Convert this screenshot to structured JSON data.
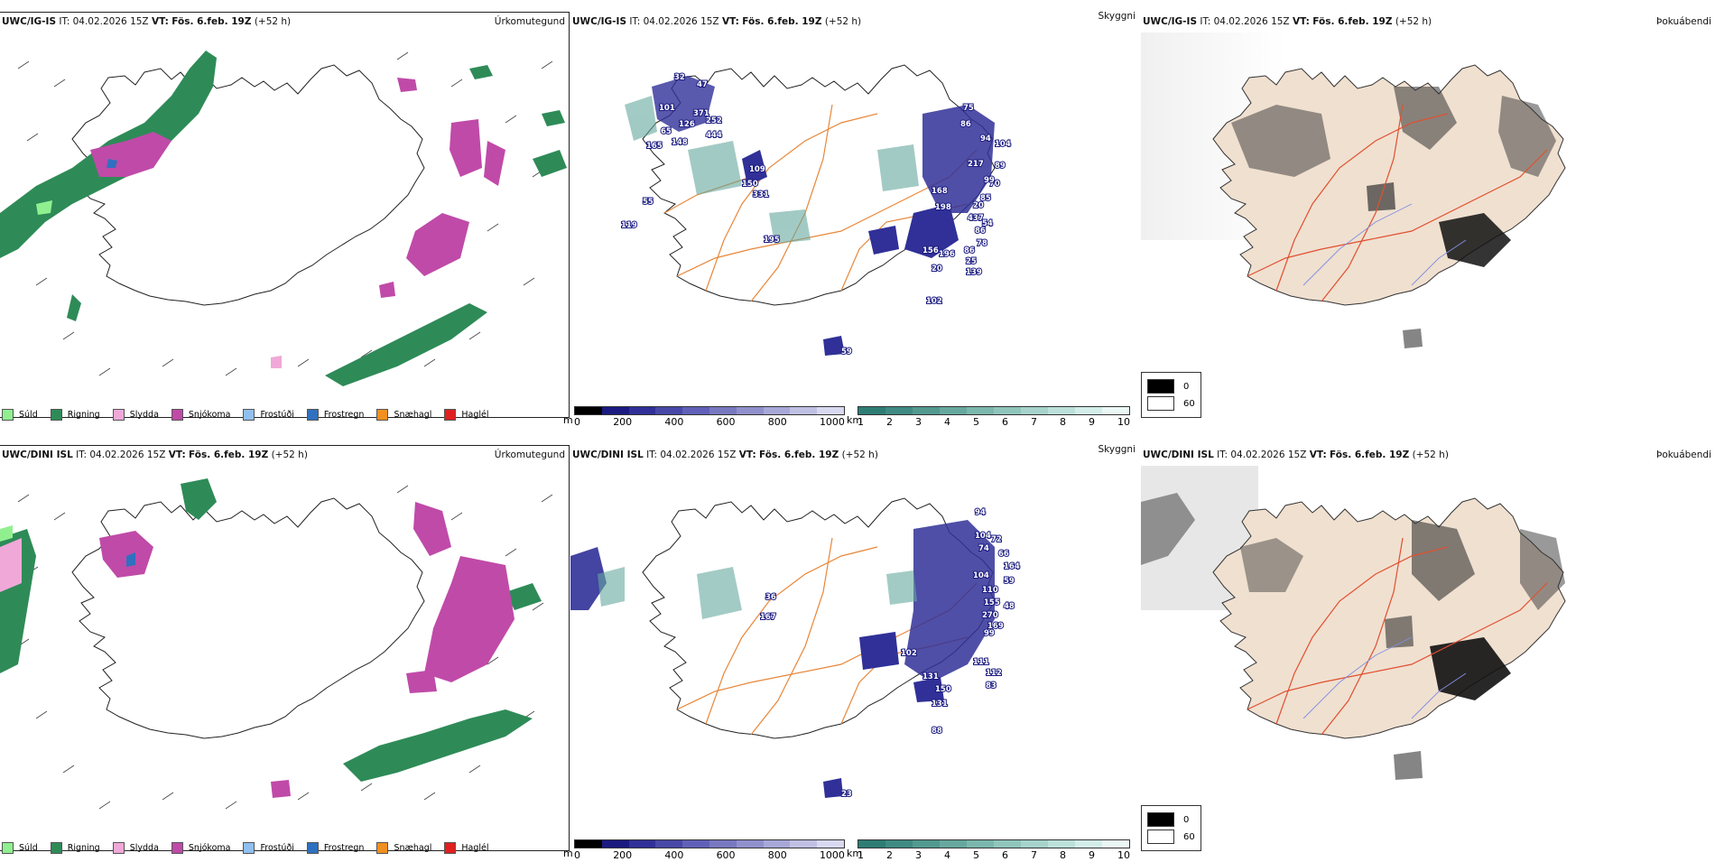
{
  "panels": {
    "ig_precip": {
      "model": "UWC/IG-IS",
      "it_label": "IT:",
      "it_value": "04.02.2026 15Z",
      "vt_label": "VT:",
      "vt_value": "Fös. 6.feb. 19Z",
      "lead": "(+52 h)",
      "title": "Úrkomutegund"
    },
    "ig_cloud": {
      "model": "UWC/IG-IS",
      "it_label": "IT:",
      "it_value": "04.02.2026 15Z",
      "vt_label": "VT:",
      "vt_value": "Fös. 6.feb. 19Z",
      "lead": "(+52 h)",
      "title": "Skyggni"
    },
    "ig_fog": {
      "model": "UWC/IG-IS",
      "it_label": "IT:",
      "it_value": "04.02.2026 15Z",
      "vt_label": "VT:",
      "vt_value": "Fös. 6.feb. 19Z",
      "lead": "(+52 h)",
      "title": "Þokuábendi"
    },
    "dini_precip": {
      "model": "UWC/DINI ISL",
      "it_label": "IT:",
      "it_value": "04.02.2026 15Z",
      "vt_label": "VT:",
      "vt_value": "Fös. 6.feb. 19Z",
      "lead": "(+52 h)",
      "title": "Úrkomutegund"
    },
    "dini_cloud": {
      "model": "UWC/DINI ISL",
      "it_label": "IT:",
      "it_value": "04.02.2026 15Z",
      "vt_label": "VT:",
      "vt_value": "Fös. 6.feb. 19Z",
      "lead": "(+52 h)",
      "title": "Skyggni"
    },
    "dini_fog": {
      "model": "UWC/DINI ISL",
      "it_label": "IT:",
      "it_value": "04.02.2026 15Z",
      "vt_label": "VT:",
      "vt_value": "Fös. 6.feb. 19Z",
      "lead": "(+52 h)",
      "title": "Þokuábendi"
    }
  },
  "precip_legend": [
    {
      "label": "Súld",
      "color": "#90f090"
    },
    {
      "label": "Rigning",
      "color": "#2e8b57"
    },
    {
      "label": "Slydda",
      "color": "#f0a8d8"
    },
    {
      "label": "Snjókoma",
      "color": "#c04aa8"
    },
    {
      "label": "Frostúði",
      "color": "#90c0f0"
    },
    {
      "label": "Frostregn",
      "color": "#3070c0"
    },
    {
      "label": "Snæhagl",
      "color": "#f09020"
    },
    {
      "label": "Haglél",
      "color": "#e02020"
    }
  ],
  "cloudbase_scale": {
    "unit": "m",
    "ticks": [
      "0",
      "200",
      "400",
      "600",
      "800",
      "1000"
    ],
    "colors": [
      "#000000",
      "#1a1a80",
      "#303098",
      "#4848a8",
      "#6060b8",
      "#7878c0",
      "#9090cc",
      "#a8a8d8",
      "#c0c0e4",
      "#d8d8f0"
    ]
  },
  "visibility_scale": {
    "unit": "km",
    "ticks": [
      "1",
      "2",
      "3",
      "4",
      "5",
      "6",
      "7",
      "8",
      "9",
      "10"
    ],
    "colors": [
      "#2e7d74",
      "#3f8a82",
      "#529990",
      "#66a89e",
      "#7bb7ad",
      "#90c5bc",
      "#a6d3cb",
      "#bce0da",
      "#d3ede9",
      "#eaf7f5"
    ]
  },
  "fog_legend": [
    {
      "label": "0",
      "color": "#000000"
    },
    {
      "label": "60",
      "color": "#ffffff"
    }
  ],
  "cloud_labels_ig": [
    "32",
    "47",
    "101",
    "371",
    "126",
    "252",
    "65",
    "444",
    "148",
    "165",
    "109",
    "150",
    "331",
    "55",
    "119",
    "195",
    "75",
    "86",
    "94",
    "104",
    "217",
    "89",
    "70",
    "99",
    "168",
    "85",
    "198",
    "20",
    "437",
    "54",
    "86",
    "78",
    "156",
    "196",
    "86",
    "25",
    "20",
    "139",
    "102",
    "59"
  ],
  "cloud_labels_dini": [
    "94",
    "104",
    "72",
    "74",
    "66",
    "164",
    "59",
    "104",
    "110",
    "155",
    "48",
    "270",
    "169",
    "99",
    "36",
    "167",
    "102",
    "131",
    "150",
    "131",
    "111",
    "112",
    "83",
    "88",
    "23"
  ]
}
